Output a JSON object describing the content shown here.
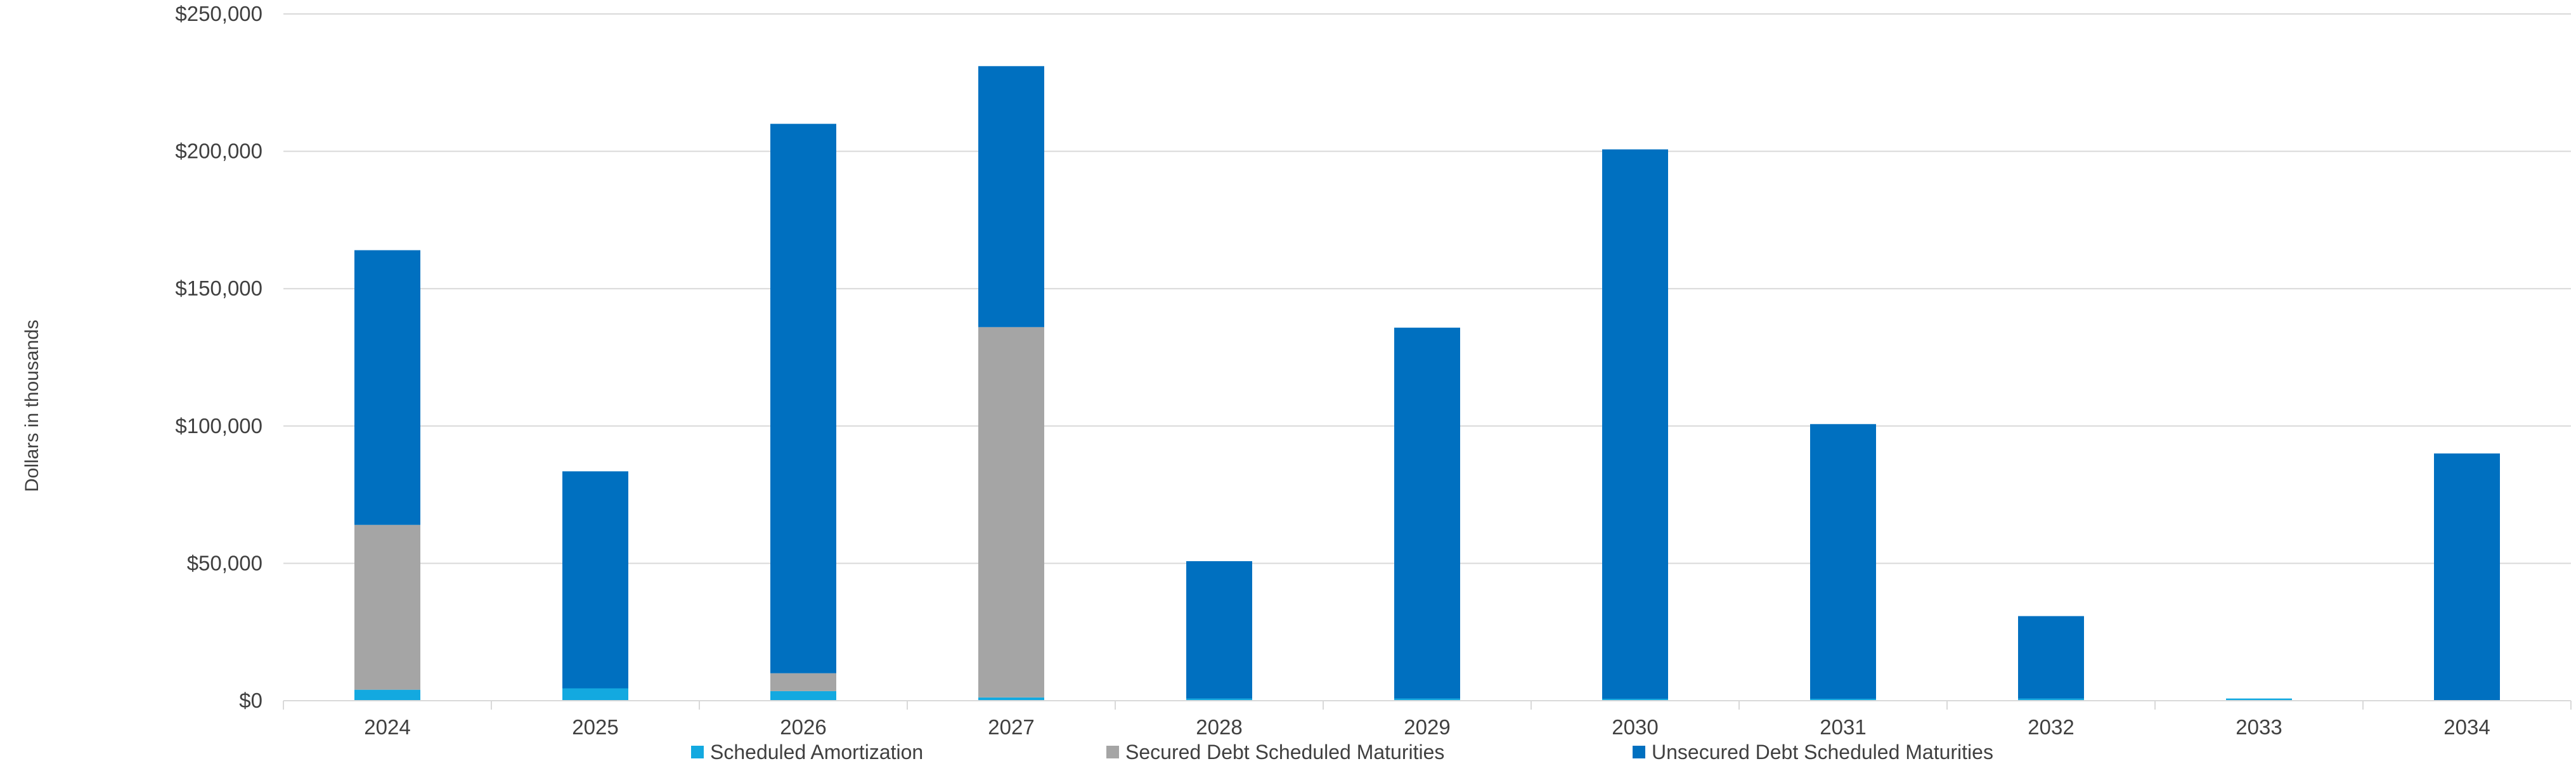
{
  "chart_data": {
    "type": "bar",
    "stacked": true,
    "title": "",
    "xlabel": "",
    "ylabel": "Dollars in thousands",
    "ylim": [
      0,
      250000
    ],
    "y_ticks": [
      0,
      50000,
      100000,
      150000,
      200000,
      250000
    ],
    "y_tick_labels": [
      "$0",
      "$50,000",
      "$100,000",
      "$150,000",
      "$200,000",
      "$250,000"
    ],
    "categories": [
      "2024",
      "2025",
      "2026",
      "2027",
      "2028",
      "2029",
      "2030",
      "2031",
      "2032",
      "2033",
      "2034"
    ],
    "series": [
      {
        "name": "Scheduled Amortization",
        "color": "#13a9e0",
        "values": [
          4000,
          4500,
          3500,
          1200,
          800,
          800,
          700,
          700,
          800,
          800,
          0
        ]
      },
      {
        "name": "Secured Debt Scheduled Maturities",
        "color": "#a5a5a5",
        "values": [
          60000,
          0,
          6500,
          134800,
          0,
          0,
          0,
          0,
          0,
          0,
          0
        ]
      },
      {
        "name": "Unsecured Debt Scheduled Maturities",
        "color": "#0070c0",
        "values": [
          100000,
          79000,
          200000,
          95000,
          50000,
          135000,
          200000,
          100000,
          30000,
          0,
          90000
        ]
      }
    ],
    "grid": true,
    "legend_position": "bottom"
  }
}
